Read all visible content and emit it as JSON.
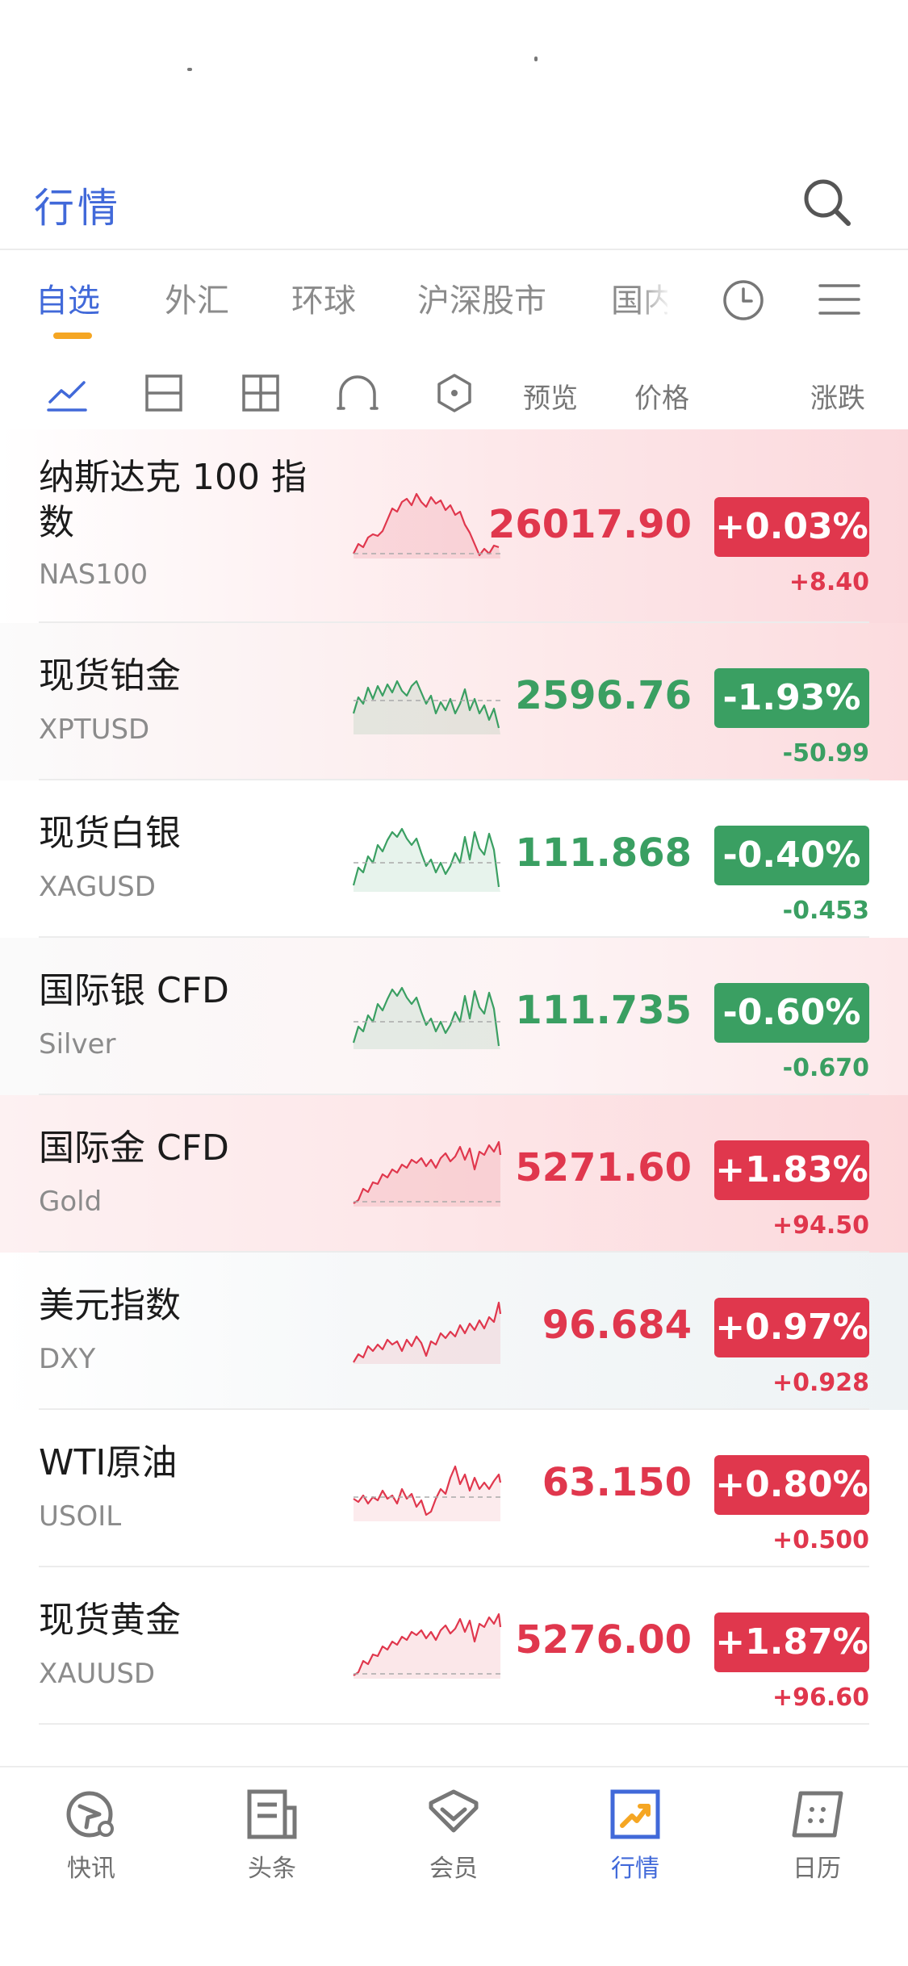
{
  "header": {
    "title": "行情",
    "search_icon": "search-icon"
  },
  "tabs": {
    "items": [
      "自选",
      "外汇",
      "环球",
      "沪深股市",
      "国内"
    ],
    "active_index": 0,
    "accent_color": "#4169d9",
    "underline_color": "#f5a623",
    "history_icon": "clock-icon",
    "menu_icon": "menu-icon"
  },
  "toolbar": {
    "view_icons": [
      "line-chart-icon",
      "list-view-icon",
      "grid-view-icon",
      "heatmap-icon",
      "hexagon-icon"
    ],
    "columns": {
      "preview": "预览",
      "price": "价格",
      "change": "涨跌"
    }
  },
  "colors": {
    "up": "#e0374d",
    "down": "#3a9f62"
  },
  "quotes": [
    {
      "name": "纳斯达克 100 指数",
      "symbol": "NAS100",
      "price": "26017.90",
      "percent": "+0.03%",
      "change": "+8.40",
      "trend": "up"
    },
    {
      "name": "现货铂金",
      "symbol": "XPTUSD",
      "price": "2596.76",
      "percent": "-1.93%",
      "change": "-50.99",
      "trend": "down"
    },
    {
      "name": "现货白银",
      "symbol": "XAGUSD",
      "price": "111.868",
      "percent": "-0.40%",
      "change": "-0.453",
      "trend": "down"
    },
    {
      "name": "国际银 CFD",
      "symbol": "Silver",
      "price": "111.735",
      "percent": "-0.60%",
      "change": "-0.670",
      "trend": "down"
    },
    {
      "name": "国际金 CFD",
      "symbol": "Gold",
      "price": "5271.60",
      "percent": "+1.83%",
      "change": "+94.50",
      "trend": "up"
    },
    {
      "name": "美元指数",
      "symbol": "DXY",
      "price": "96.684",
      "percent": "+0.97%",
      "change": "+0.928",
      "trend": "up"
    },
    {
      "name": "WTI原油",
      "symbol": "USOIL",
      "price": "63.150",
      "percent": "+0.80%",
      "change": "+0.500",
      "trend": "up"
    },
    {
      "name": "现货黄金",
      "symbol": "XAUUSD",
      "price": "5276.00",
      "percent": "+1.87%",
      "change": "+96.60",
      "trend": "up"
    }
  ],
  "bottom_nav": {
    "items": [
      {
        "label": "快讯",
        "icon": "flash-news-icon"
      },
      {
        "label": "头条",
        "icon": "newspaper-icon"
      },
      {
        "label": "会员",
        "icon": "diamond-icon"
      },
      {
        "label": "行情",
        "icon": "market-chart-icon"
      },
      {
        "label": "日历",
        "icon": "calendar-icon"
      }
    ],
    "active_index": 3
  }
}
